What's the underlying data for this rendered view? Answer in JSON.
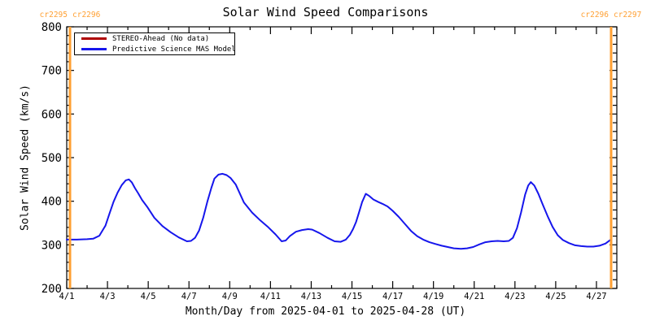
{
  "header": {
    "title": "Solar Wind Speed Comparisons",
    "carrington_color": "#FFA033",
    "carrington_left": {
      "labels": [
        "cr2295",
        "cr2296"
      ]
    },
    "carrington_right": {
      "labels": [
        "cr2296",
        "cr2297"
      ]
    }
  },
  "legend": {
    "entries": [
      {
        "label": "STEREO-Ahead (No data)",
        "color": "#AE0000"
      },
      {
        "label": "Predictive Science MAS Model",
        "color": "#1616EC"
      }
    ]
  },
  "chart_data": {
    "type": "line",
    "title": "Solar Wind Speed Comparisons",
    "xlabel": "Month/Day from 2025-04-01 to 2025-04-28 (UT)",
    "ylabel": "Solar Wind Speed (km/s)",
    "x_unit": "April day of month, 2025 (UT)",
    "xlim_days": [
      1,
      28
    ],
    "ylim": [
      200,
      800
    ],
    "grid": false,
    "legend_position": "top-left",
    "x_ticks": [
      {
        "day": 1,
        "label": "4/1"
      },
      {
        "day": 3,
        "label": "4/3"
      },
      {
        "day": 5,
        "label": "4/5"
      },
      {
        "day": 7,
        "label": "4/7"
      },
      {
        "day": 9,
        "label": "4/9"
      },
      {
        "day": 11,
        "label": "4/11"
      },
      {
        "day": 13,
        "label": "4/13"
      },
      {
        "day": 15,
        "label": "4/15"
      },
      {
        "day": 17,
        "label": "4/17"
      },
      {
        "day": 19,
        "label": "4/19"
      },
      {
        "day": 21,
        "label": "4/21"
      },
      {
        "day": 23,
        "label": "4/23"
      },
      {
        "day": 25,
        "label": "4/25"
      },
      {
        "day": 27,
        "label": "4/27"
      }
    ],
    "x_minor_step_days": 1,
    "y_ticks": [
      200,
      300,
      400,
      500,
      600,
      700,
      800
    ],
    "y_minor_step": 20,
    "boundary_lines": {
      "color": "#FFA033",
      "days": [
        1.16,
        27.72
      ],
      "meaning": [
        "cr2295/cr2296 boundary",
        "cr2296/cr2297 boundary"
      ]
    },
    "series": [
      {
        "name": "STEREO-Ahead (No data)",
        "color": "#AE0000",
        "points": []
      },
      {
        "name": "Predictive Science MAS Model",
        "color": "#1616EC",
        "points": [
          [
            1.0,
            312
          ],
          [
            1.5,
            312
          ],
          [
            2.0,
            313
          ],
          [
            2.3,
            314
          ],
          [
            2.6,
            321
          ],
          [
            2.9,
            344
          ],
          [
            3.1,
            372
          ],
          [
            3.3,
            399
          ],
          [
            3.5,
            420
          ],
          [
            3.7,
            437
          ],
          [
            3.9,
            448
          ],
          [
            4.05,
            450
          ],
          [
            4.2,
            443
          ],
          [
            4.35,
            430
          ],
          [
            4.5,
            419
          ],
          [
            4.7,
            403
          ],
          [
            4.95,
            387
          ],
          [
            5.3,
            362
          ],
          [
            5.7,
            343
          ],
          [
            6.1,
            329
          ],
          [
            6.5,
            317
          ],
          [
            6.9,
            308
          ],
          [
            7.1,
            309
          ],
          [
            7.3,
            316
          ],
          [
            7.5,
            333
          ],
          [
            7.7,
            362
          ],
          [
            7.9,
            399
          ],
          [
            8.1,
            431
          ],
          [
            8.25,
            452
          ],
          [
            8.45,
            461
          ],
          [
            8.65,
            463
          ],
          [
            8.85,
            460
          ],
          [
            9.05,
            453
          ],
          [
            9.3,
            438
          ],
          [
            9.7,
            397
          ],
          [
            10.1,
            374
          ],
          [
            10.5,
            356
          ],
          [
            10.9,
            340
          ],
          [
            11.25,
            324
          ],
          [
            11.55,
            308
          ],
          [
            11.75,
            310
          ],
          [
            11.95,
            320
          ],
          [
            12.25,
            330
          ],
          [
            12.55,
            334
          ],
          [
            12.85,
            336
          ],
          [
            13.05,
            335
          ],
          [
            13.4,
            327
          ],
          [
            13.8,
            316
          ],
          [
            14.15,
            308
          ],
          [
            14.45,
            307
          ],
          [
            14.7,
            312
          ],
          [
            14.9,
            323
          ],
          [
            15.05,
            336
          ],
          [
            15.2,
            352
          ],
          [
            15.35,
            375
          ],
          [
            15.5,
            398
          ],
          [
            15.68,
            417
          ],
          [
            15.85,
            412
          ],
          [
            16.05,
            404
          ],
          [
            16.3,
            398
          ],
          [
            16.5,
            394
          ],
          [
            16.75,
            388
          ],
          [
            17.0,
            378
          ],
          [
            17.3,
            364
          ],
          [
            17.6,
            348
          ],
          [
            17.9,
            332
          ],
          [
            18.2,
            320
          ],
          [
            18.5,
            312
          ],
          [
            18.8,
            306
          ],
          [
            19.1,
            302
          ],
          [
            19.4,
            298
          ],
          [
            19.7,
            295
          ],
          [
            20.0,
            292
          ],
          [
            20.35,
            291
          ],
          [
            20.65,
            292
          ],
          [
            20.95,
            295
          ],
          [
            21.25,
            301
          ],
          [
            21.55,
            306
          ],
          [
            21.85,
            308
          ],
          [
            22.15,
            309
          ],
          [
            22.45,
            308
          ],
          [
            22.7,
            309
          ],
          [
            22.9,
            316
          ],
          [
            23.1,
            338
          ],
          [
            23.3,
            374
          ],
          [
            23.5,
            415
          ],
          [
            23.65,
            436
          ],
          [
            23.78,
            444
          ],
          [
            23.95,
            436
          ],
          [
            24.15,
            417
          ],
          [
            24.35,
            394
          ],
          [
            24.6,
            366
          ],
          [
            24.85,
            341
          ],
          [
            25.1,
            322
          ],
          [
            25.35,
            311
          ],
          [
            25.65,
            304
          ],
          [
            25.95,
            299
          ],
          [
            26.25,
            297
          ],
          [
            26.55,
            296
          ],
          [
            26.85,
            296
          ],
          [
            27.15,
            298
          ],
          [
            27.45,
            303
          ],
          [
            27.7,
            312
          ]
        ]
      }
    ]
  }
}
